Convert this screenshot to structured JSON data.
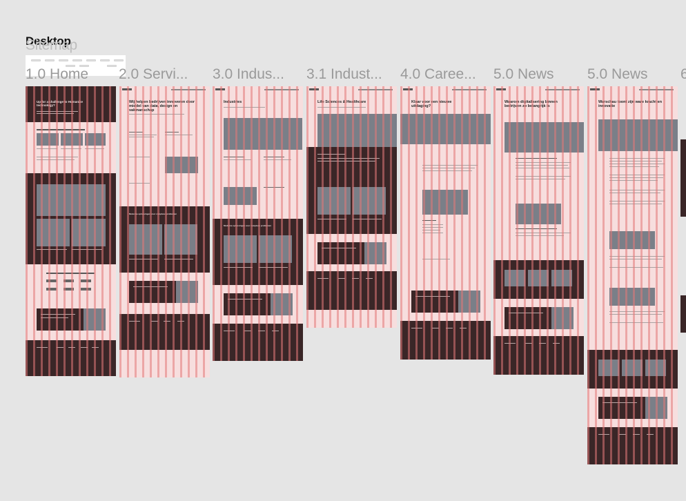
{
  "canvas": {
    "section_title": "Desktop",
    "ghost_title": "Sitemap",
    "background": "#e5e5e5"
  },
  "frames": [
    {
      "label": "1.0 Home",
      "heading": "Up for a challenge to Humanize technology?"
    },
    {
      "label": "2.0 Servi...",
      "heading": "Wij helpen bedrijven innoveren door middel van data, design en vakmanschap"
    },
    {
      "label": "3.0 Indus...",
      "heading": "Industries"
    },
    {
      "label": "3.1 Indust...",
      "heading": "Life Sciences & Healthcare"
    },
    {
      "label": "4.0 Caree...",
      "heading": "Klaar voor een nieuwe uitdaging?"
    },
    {
      "label": "5.0 News",
      "heading": "Waarom digitalisering binnen bedrijven zo belangrijk is"
    },
    {
      "label": "5.0 News",
      "heading": "Warschau toont zijn ware kracht en innovatie"
    },
    {
      "label": "6"
    }
  ],
  "colors": {
    "frame_bg": "#f7dede",
    "grid_column": "#e27878",
    "dark_section": "#3a2627"
  }
}
